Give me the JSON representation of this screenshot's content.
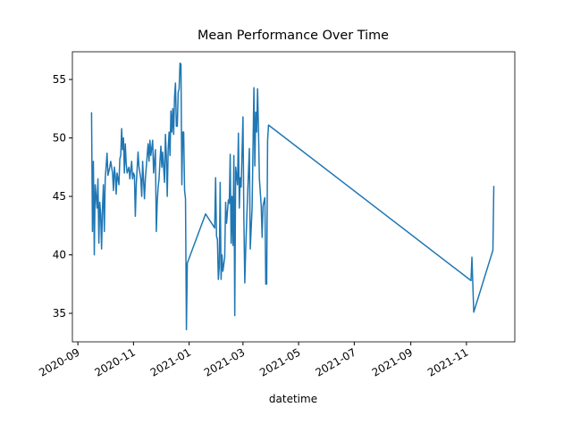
{
  "chart_data": {
    "type": "line",
    "title": "Mean Performance Over Time",
    "x_label": "datetime",
    "x": [
      18521,
      18522,
      18523,
      18524,
      18525,
      18527,
      18528,
      18529,
      18530,
      18531,
      18532,
      18533,
      18534,
      18535,
      18536,
      18538,
      18539,
      18541,
      18542,
      18544,
      18545,
      18546,
      18547,
      18548,
      18549,
      18551,
      18552,
      18553,
      18554,
      18555,
      18556,
      18557,
      18558,
      18559,
      18560,
      18562,
      18563,
      18565,
      18566,
      18567,
      18568,
      18569,
      18570,
      18572,
      18573,
      18575,
      18576,
      18577,
      18579,
      18580,
      18582,
      18583,
      18584,
      18585,
      18586,
      18588,
      18589,
      18590,
      18591,
      18592,
      18593,
      18594,
      18595,
      18596,
      18597,
      18598,
      18599,
      18600,
      18601,
      18602,
      18603,
      18604,
      18605,
      18606,
      18607,
      18608,
      18609,
      18610,
      18611,
      18612,
      18613,
      18614,
      18615,
      18616,
      18617,
      18618,
      18619,
      18620,
      18621,
      18622,
      18623,
      18624,
      18625,
      18626,
      18646,
      18656,
      18657,
      18658,
      18659,
      18660,
      18661,
      18662,
      18663,
      18664,
      18665,
      18667,
      18668,
      18669,
      18671,
      18672,
      18673,
      18674,
      18675,
      18676,
      18677,
      18678,
      18679,
      18681,
      18682,
      18683,
      18684,
      18685,
      18687,
      18688,
      18689,
      18690,
      18692,
      18694,
      18695,
      18697,
      18699,
      18700,
      18701,
      18702,
      18703,
      18704,
      18705,
      18707,
      18708,
      18709,
      18711,
      18712,
      18713,
      18714,
      18715,
      18937,
      18938,
      18940,
      18961,
      18962
    ],
    "series": [
      {
        "name": "mean",
        "color": "#1f77b4",
        "values": [
          52.2,
          42,
          48,
          40,
          46,
          44,
          46.5,
          41,
          44.5,
          43.5,
          40.5,
          44,
          46,
          42,
          46.5,
          48.7,
          46.8,
          47.5,
          48,
          47,
          45.5,
          47.5,
          46.8,
          45.2,
          47,
          46,
          48.2,
          48.5,
          50.8,
          49,
          50,
          47,
          49.5,
          47.8,
          47,
          47.5,
          46.5,
          48,
          46.5,
          47,
          46.8,
          43.3,
          46,
          48.8,
          47.5,
          46.5,
          45,
          48,
          44.8,
          46.5,
          48.5,
          49.5,
          48,
          49.8,
          48.5,
          49.8,
          47,
          48,
          49,
          42,
          44.5,
          45.8,
          46.5,
          48,
          49.3,
          47.5,
          48.8,
          47.5,
          46.2,
          50.3,
          48.5,
          45,
          49,
          50.5,
          48.5,
          52.3,
          50.5,
          52.5,
          50.3,
          53.5,
          54.7,
          51,
          51,
          53.9,
          54.2,
          56.4,
          56.3,
          46,
          50.5,
          50.5,
          45.5,
          44.8,
          33.6,
          39.3,
          43.5,
          42.3,
          46.6,
          41.6,
          41.3,
          37.9,
          39,
          46.2,
          37.9,
          40,
          38.6,
          39.8,
          44.5,
          42.7,
          44.7,
          44.4,
          48.6,
          41,
          45,
          40.8,
          48.5,
          34.8,
          47.5,
          46,
          50.4,
          44,
          46.6,
          45.8,
          51.8,
          43,
          37.6,
          40.5,
          45,
          49.1,
          40.5,
          44,
          54.3,
          47.6,
          52.2,
          50.5,
          54.2,
          50.8,
          46.5,
          44.2,
          41.5,
          44.2,
          44.9,
          37.5,
          37.5,
          49.8,
          51.1,
          37.8,
          39.8,
          35.1,
          40.4,
          45.9
        ]
      }
    ],
    "xlim": [
      18500,
      18985
    ],
    "ylim": [
      32.56,
      57.37
    ],
    "xticks": [
      {
        "value": 18506,
        "label": "2020-09"
      },
      {
        "value": 18567,
        "label": "2020-11"
      },
      {
        "value": 18628,
        "label": "2021-01"
      },
      {
        "value": 18687,
        "label": "2021-03"
      },
      {
        "value": 18748,
        "label": "2021-05"
      },
      {
        "value": 18809,
        "label": "2021-07"
      },
      {
        "value": 18871,
        "label": "2021-09"
      },
      {
        "value": 18932,
        "label": "2021-11"
      }
    ],
    "yticks": [
      35,
      40,
      45,
      50,
      55
    ]
  }
}
